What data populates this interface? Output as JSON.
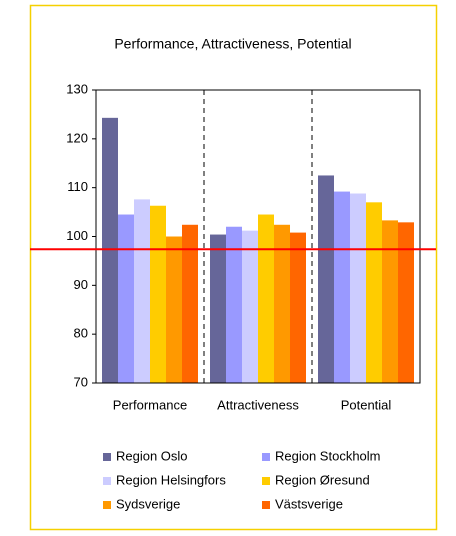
{
  "chart_data": {
    "type": "bar",
    "title": "Performance, Attractiveness, Potential",
    "categories": [
      "Performance",
      "Attractiveness",
      "Potential"
    ],
    "series": [
      {
        "name": "Region Oslo",
        "color": "#666699",
        "values": [
          124.3,
          100.4,
          112.5
        ]
      },
      {
        "name": "Region Stockholm",
        "color": "#9999ff",
        "values": [
          104.5,
          102.0,
          109.2
        ]
      },
      {
        "name": "Region Helsingfors",
        "color": "#ccccff",
        "values": [
          107.6,
          101.2,
          108.8
        ]
      },
      {
        "name": "Region Øresund",
        "color": "#ffcc00",
        "values": [
          106.3,
          104.5,
          107.0
        ]
      },
      {
        "name": "Sydsverige",
        "color": "#ff9900",
        "values": [
          100.0,
          102.4,
          103.3
        ]
      },
      {
        "name": "Västsverige",
        "color": "#ff6600",
        "values": [
          102.4,
          100.8,
          102.9
        ]
      }
    ],
    "reference_line": {
      "value": 97.4,
      "color": "#ff0000"
    },
    "ylim": [
      70,
      130
    ],
    "yticks": [
      70,
      80,
      90,
      100,
      110,
      120,
      130
    ],
    "legend": "bottom"
  }
}
